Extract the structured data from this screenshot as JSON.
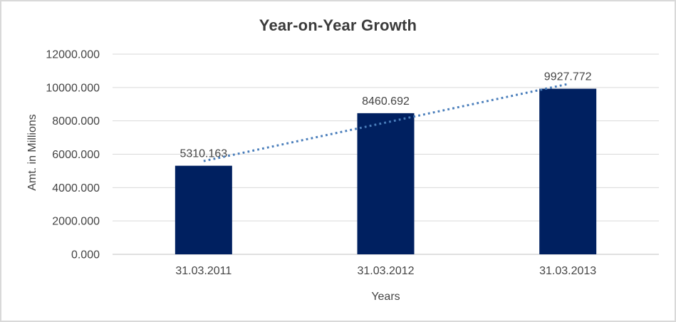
{
  "chart_data": {
    "type": "bar",
    "title": "Year-on-Year Growth",
    "xlabel": "Years",
    "ylabel": "Amt. in Millions",
    "categories": [
      "31.03.2011",
      "31.03.2012",
      "31.03.2013"
    ],
    "values": [
      5310.163,
      8460.692,
      9927.772
    ],
    "data_labels": [
      "5310.163",
      "8460.692",
      "9927.772"
    ],
    "ylim": [
      0,
      12000
    ],
    "ytick_step": 2000,
    "ytick_labels": [
      "0.000",
      "2000.000",
      "4000.000",
      "6000.000",
      "8000.000",
      "10000.000",
      "12000.000"
    ],
    "grid": true,
    "legend": "none",
    "trendline": {
      "type": "linear",
      "style": "dotted"
    },
    "colors": {
      "bar": "#002060",
      "trendline": "#4a7ebb",
      "gridline": "#d9d9d9",
      "axis_line": "#c0c0c0",
      "text": "#444444",
      "title": "#3b3b3b",
      "background": "#ffffff",
      "frame_border": "#d9d9d9"
    }
  }
}
